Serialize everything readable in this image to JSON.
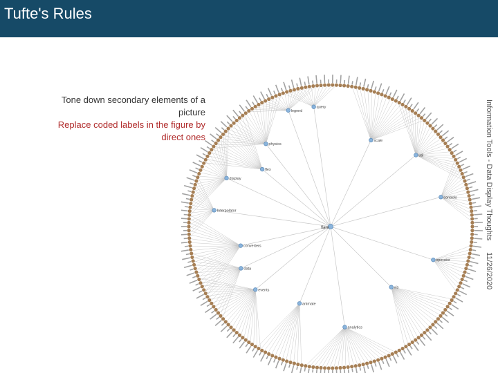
{
  "slide": {
    "title": "Tufte's Rules",
    "bullets": [
      "Tone down secondary elements of a picture",
      "Replace coded labels in the figure by direct ones"
    ],
    "footer": "Information Tools - Data Display Thoughts",
    "date": "11/26/2020"
  },
  "tree": {
    "root": "flare",
    "branches": [
      {
        "label": "animate",
        "angle": 112
      },
      {
        "label": "data",
        "angle": 155
      },
      {
        "label": "display",
        "angle": 205
      },
      {
        "label": "flex",
        "angle": 220
      },
      {
        "label": "physics",
        "angle": 232
      },
      {
        "label": "query",
        "angle": 262
      },
      {
        "label": "scale",
        "angle": 295
      },
      {
        "label": "util",
        "angle": 320
      },
      {
        "label": "vis",
        "angle": 45
      },
      {
        "label": "analytics",
        "angle": 82
      },
      {
        "label": "Interpolator",
        "angle": 188
      },
      {
        "label": "converters",
        "angle": 168
      },
      {
        "label": "operator",
        "angle": 18
      },
      {
        "label": "legend",
        "angle": 250
      },
      {
        "label": "events",
        "angle": 140
      },
      {
        "label": "controls",
        "angle": 345
      }
    ],
    "colors": {
      "node_leaf": "#a67f55",
      "node_internal": "#8ab4dc",
      "link": "#c8c8c8"
    }
  }
}
